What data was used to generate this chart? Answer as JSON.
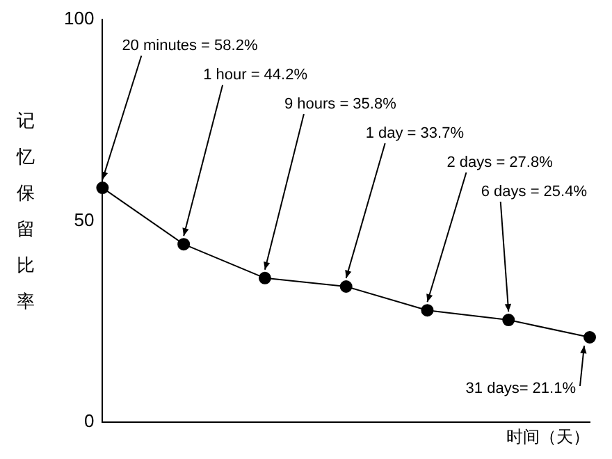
{
  "chart_data": {
    "type": "line",
    "xlabel": "时间（天）",
    "ylabel": "记忆保留比率",
    "categories": [
      null,
      null,
      null,
      null,
      null,
      null,
      null
    ],
    "values": [
      58.2,
      44.2,
      35.8,
      33.7,
      27.8,
      25.4,
      21.1
    ],
    "value_labels": [
      "20 minutes = 58.2%",
      "1 hour = 44.2%",
      "9 hours = 35.8%",
      "1 day = 33.7%",
      "2 days = 27.8%",
      "6 days = 25.4%",
      "31 days= 21.1%"
    ],
    "color": "#000000",
    "ylim": [
      0,
      100
    ],
    "yticks": [
      0,
      50,
      100
    ],
    "grid": false,
    "legend": false,
    "marker": "circle",
    "line_style": "solid",
    "tick_labels": "y"
  }
}
